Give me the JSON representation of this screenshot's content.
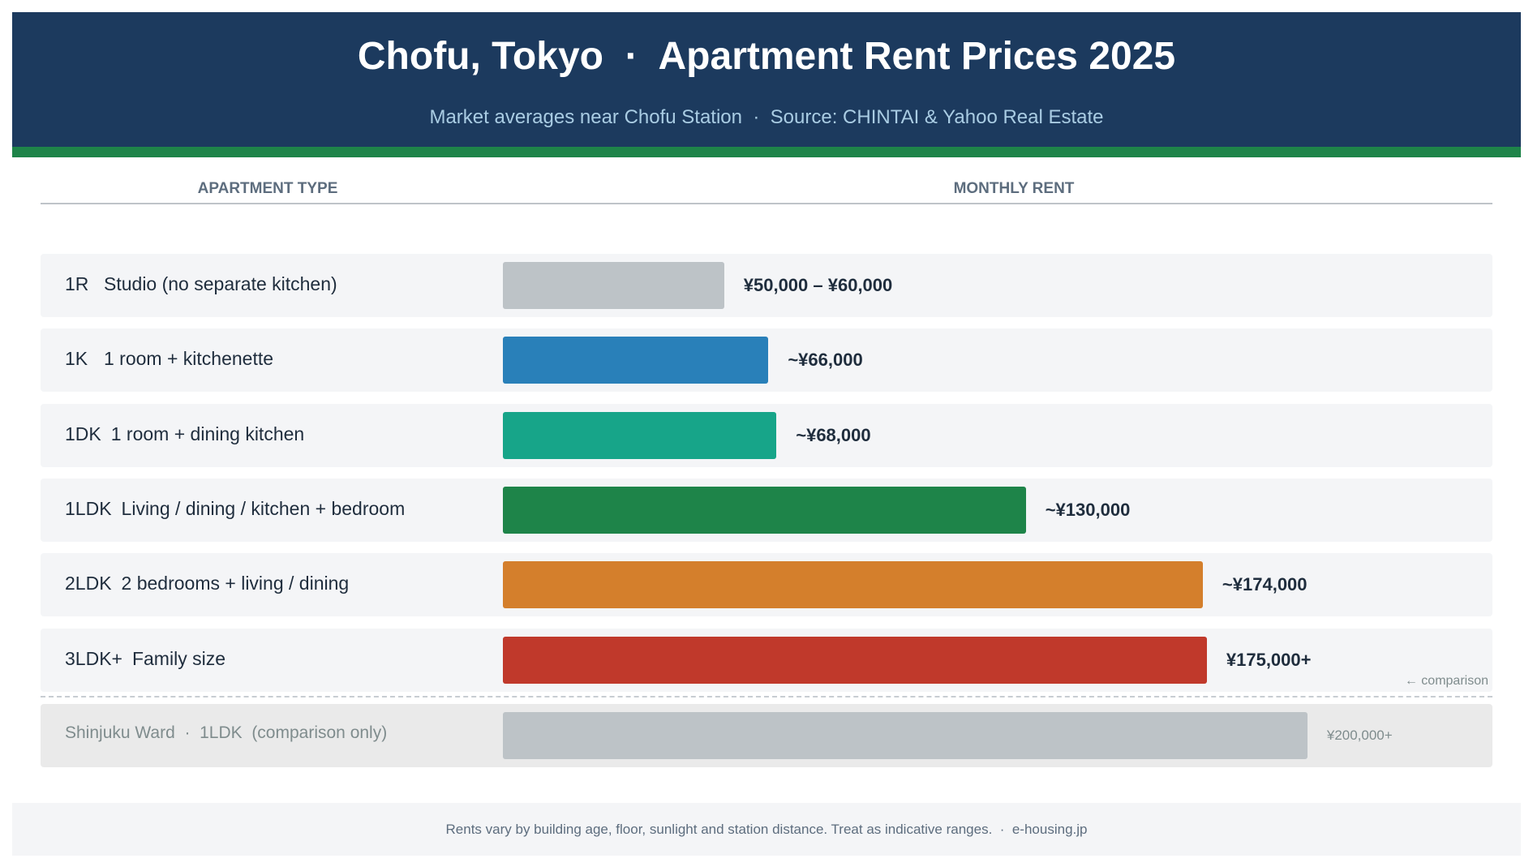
{
  "header": {
    "title": "Chofu, Tokyo  ·  Apartment Rent Prices 2025",
    "subtitle": "Market averages near Chofu Station  ·  Source: CHINTAI & Yahoo Real Estate"
  },
  "columns": [
    "APARTMENT TYPE",
    "MONTHLY RENT"
  ],
  "chart_data": {
    "type": "bar",
    "categories": [
      "1R",
      "1K",
      "1DK",
      "1LDK",
      "2LDK",
      "3LDK+"
    ],
    "descriptions": [
      "Studio (no separate kitchen)",
      "1 room + kitchenette",
      "1 room + dining kitchen",
      "Living / dining / kitchen + bedroom",
      "2 bedrooms + living / dining",
      "Family size"
    ],
    "values": [
      50000,
      66000,
      68000,
      130000,
      174000,
      175000
    ],
    "values_high": [
      60000,
      null,
      null,
      null,
      null,
      null
    ],
    "value_labels": [
      "¥50,000 – ¥60,000",
      "~¥66,000",
      "~¥68,000",
      "~¥130,000",
      "~¥174,000",
      "¥175,000+"
    ],
    "colors": [
      "#bdc3c7",
      "#2980b9",
      "#17a589",
      "#1e8449",
      "#d47f2c",
      "#c0392b"
    ],
    "xlim": [
      0,
      246000
    ],
    "comparison": {
      "label": "Shinjuku Ward  ·  1LDK  (comparison only)",
      "value": 200000,
      "value_label": "¥200,000+",
      "note": "← comparison",
      "color": "#bdc3c7"
    }
  },
  "footer": "Rents vary by building age, floor, sunlight and station distance. Treat as indicative ranges.  ·  e-housing.jp"
}
